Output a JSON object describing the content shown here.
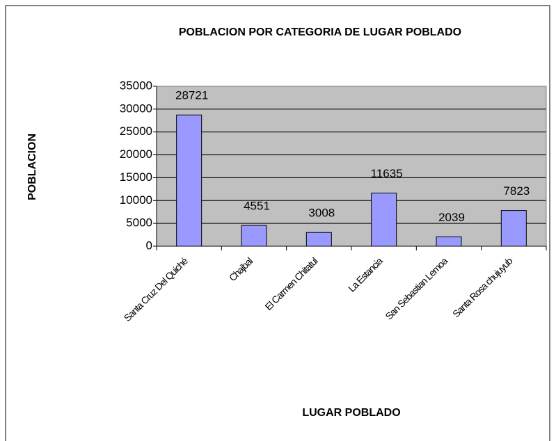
{
  "chart_data": {
    "type": "bar",
    "title": "POBLACION POR CATEGORIA DE LUGAR POBLADO",
    "x_label": "LUGAR POBLADO",
    "y_label": "POBLACION",
    "categories": [
      "Santa Cruz Del Quiché",
      "Chajbal",
      "El Carmen Chitatul",
      "La Estancia",
      "San Sebastian Lemoa",
      "Santa Rosa chujuyub"
    ],
    "values": [
      28721,
      4551,
      3008,
      11635,
      2039,
      7823
    ],
    "color": "#9999ff",
    "ylim": [
      0,
      35000
    ],
    "yticks": [
      0,
      5000,
      10000,
      15000,
      20000,
      25000,
      30000,
      35000
    ],
    "grid": true
  }
}
